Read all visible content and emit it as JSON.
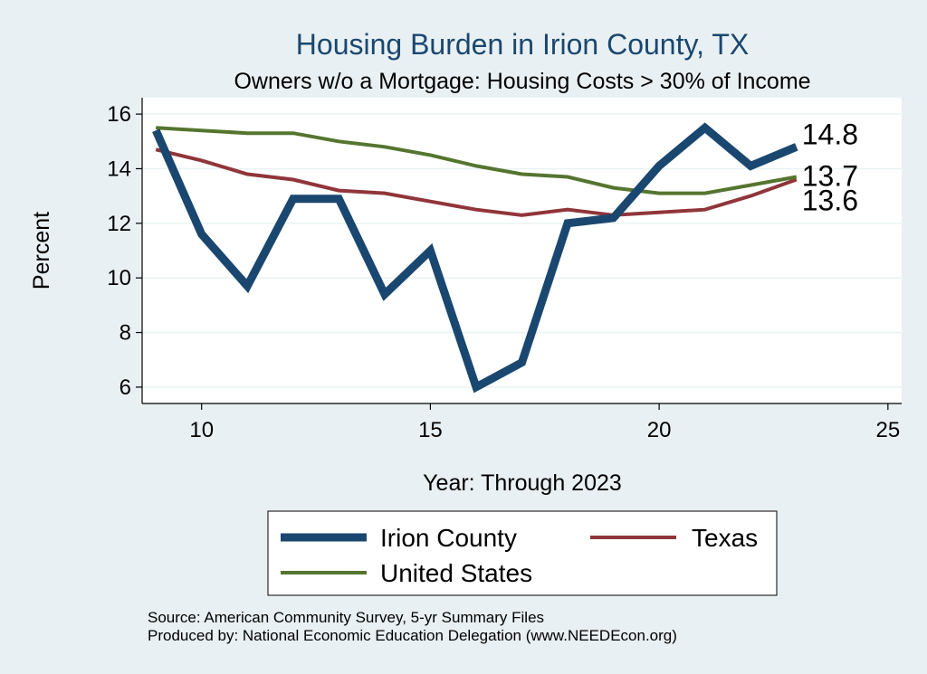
{
  "chart_data": {
    "type": "line",
    "title": "Housing Burden in Irion County, TX",
    "subtitle": "Owners w/o a Mortgage: Housing Costs > 30% of Income",
    "xlabel": "Year: Through 2023",
    "ylabel": "Percent",
    "xlim": [
      8.7,
      25.3
    ],
    "ylim": [
      5.4,
      16.6
    ],
    "x_ticks": [
      10,
      15,
      20,
      25
    ],
    "y_ticks": [
      6,
      8,
      10,
      12,
      14,
      16
    ],
    "grid": true,
    "x": [
      9,
      10,
      11,
      12,
      13,
      14,
      15,
      16,
      17,
      18,
      19,
      20,
      21,
      22,
      23
    ],
    "series": [
      {
        "name": "Irion County",
        "color": "#1a476f",
        "values": [
          15.4,
          11.6,
          9.7,
          12.9,
          12.9,
          9.4,
          11.0,
          6.0,
          6.9,
          12.0,
          12.2,
          14.1,
          15.5,
          14.1,
          14.8
        ],
        "end_label": "14.8"
      },
      {
        "name": "Texas",
        "color": "#90353b",
        "values": [
          14.7,
          14.3,
          13.8,
          13.6,
          13.2,
          13.1,
          12.8,
          12.5,
          12.3,
          12.5,
          12.3,
          12.4,
          12.5,
          13.0,
          13.6
        ],
        "end_label": "13.6"
      },
      {
        "name": "United States",
        "color": "#55752f",
        "values": [
          15.5,
          15.4,
          15.3,
          15.3,
          15.0,
          14.8,
          14.5,
          14.1,
          13.8,
          13.7,
          13.3,
          13.1,
          13.1,
          13.4,
          13.7
        ],
        "end_label": "13.7"
      }
    ],
    "legend_position": "bottom",
    "source_lines": [
      "Source: American Community Survey, 5-yr Summary Files",
      "Produced by: National Economic Education Delegation (www.NEEDEcon.org)"
    ]
  }
}
